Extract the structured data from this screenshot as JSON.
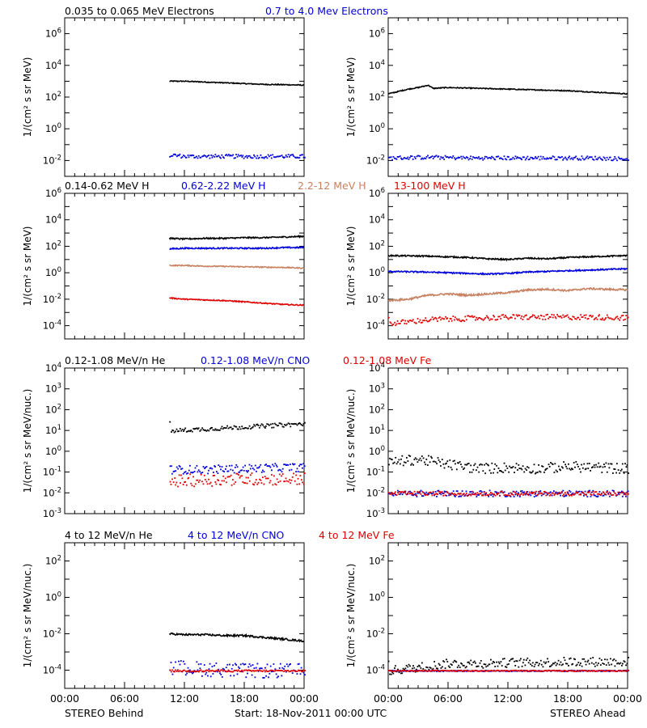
{
  "colors": {
    "black": "#000000",
    "blue": "#0000dd",
    "tan": "#c88060",
    "red": "#e00000"
  },
  "footer": {
    "x_ticks": [
      "00:00",
      "06:00",
      "12:00",
      "18:00",
      "00:00"
    ],
    "left_label": "STEREO Behind",
    "center_label": "Start: 18-Nov-2011 00:00 UTC",
    "right_label": "STEREO Ahead"
  },
  "rows": [
    {
      "legend": [
        {
          "text": "0.035 to 0.065 MeV Electrons",
          "color": "black"
        },
        {
          "text": "0.7 to 4.0 Mev Electrons",
          "color": "blue"
        }
      ]
    },
    {
      "legend": [
        {
          "text": "0.14-0.62 MeV H",
          "color": "black"
        },
        {
          "text": "0.62-2.22 MeV H",
          "color": "blue"
        },
        {
          "text": "2.2-12 MeV H",
          "color": "tan"
        },
        {
          "text": "13-100 MeV H",
          "color": "red"
        }
      ]
    },
    {
      "legend": [
        {
          "text": "0.12-1.08 MeV/n He",
          "color": "black"
        },
        {
          "text": "0.12-1.08 MeV/n CNO",
          "color": "blue"
        },
        {
          "text": "0.12-1.08 MeV Fe",
          "color": "red"
        }
      ]
    },
    {
      "legend": [
        {
          "text": "4 to 12 MeV/n He",
          "color": "black"
        },
        {
          "text": "4 to 12 MeV/n CNO",
          "color": "blue"
        },
        {
          "text": "4 to 12 MeV Fe",
          "color": "red"
        }
      ]
    }
  ],
  "chart_data": [
    {
      "type": "scatter",
      "panel": "electrons-behind",
      "ylabel": "1/(cm² s sr MeV)",
      "y_scale": "log",
      "ylim_exp": [
        -3,
        7
      ],
      "y_ticks": [
        "10^-2",
        "10^0",
        "10^2",
        "10^4",
        "10^6"
      ],
      "xlim_hours": [
        0,
        24
      ],
      "x_ticks": [
        "00:00",
        "06:00",
        "12:00",
        "18:00",
        "00:00"
      ],
      "series": [
        {
          "name": "0.035 to 0.065 MeV Electrons",
          "color": "black",
          "style": "line",
          "x": [
            10.5,
            12,
            14,
            16,
            18,
            20,
            22,
            24
          ],
          "log10_y": [
            3.0,
            3.0,
            2.95,
            2.9,
            2.85,
            2.8,
            2.78,
            2.75
          ],
          "scatter": 0.03
        },
        {
          "name": "0.7 to 4.0 Mev Electrons",
          "color": "blue",
          "style": "dots",
          "x": [
            10.5,
            12,
            14,
            16,
            18,
            20,
            22,
            24
          ],
          "log10_y": [
            -1.6,
            -1.7,
            -1.7,
            -1.7,
            -1.7,
            -1.7,
            -1.7,
            -1.7
          ],
          "scatter": 0.12
        }
      ]
    },
    {
      "type": "scatter",
      "panel": "electrons-ahead",
      "ylabel": "1/(cm² s sr MeV)",
      "y_scale": "log",
      "ylim_exp": [
        -3,
        7
      ],
      "y_ticks": [
        "10^-2",
        "10^0",
        "10^2",
        "10^4",
        "10^6"
      ],
      "xlim_hours": [
        0,
        24
      ],
      "x_ticks": [
        "00:00",
        "06:00",
        "12:00",
        "18:00",
        "00:00"
      ],
      "series": [
        {
          "name": "0.035 to 0.065 MeV Electrons",
          "color": "black",
          "style": "line",
          "x": [
            0,
            1,
            2,
            3,
            4,
            4.5,
            6,
            9,
            12,
            15,
            18,
            21,
            24
          ],
          "log10_y": [
            2.2,
            2.35,
            2.5,
            2.6,
            2.75,
            2.55,
            2.6,
            2.55,
            2.5,
            2.45,
            2.4,
            2.3,
            2.2
          ],
          "scatter": 0.03
        },
        {
          "name": "0.7 to 4.0 Mev Electrons",
          "color": "blue",
          "style": "dots",
          "x": [
            0,
            4,
            8,
            12,
            16,
            20,
            24
          ],
          "log10_y": [
            -1.8,
            -1.75,
            -1.8,
            -1.8,
            -1.8,
            -1.8,
            -1.85
          ],
          "scatter": 0.12
        }
      ]
    },
    {
      "type": "scatter",
      "panel": "protons-behind",
      "ylabel": "1/(cm² s sr MeV)",
      "y_scale": "log",
      "ylim_exp": [
        -5,
        6
      ],
      "y_ticks": [
        "10^-4",
        "10^-2",
        "10^0",
        "10^2",
        "10^4",
        "10^6"
      ],
      "xlim_hours": [
        0,
        24
      ],
      "x_ticks": [
        "00:00",
        "06:00",
        "12:00",
        "18:00",
        "00:00"
      ],
      "series": [
        {
          "name": "0.14-0.62 MeV H",
          "color": "black",
          "style": "line",
          "x": [
            10.5,
            12,
            14,
            16,
            18,
            20,
            22,
            24
          ],
          "log10_y": [
            2.6,
            2.55,
            2.6,
            2.6,
            2.65,
            2.65,
            2.7,
            2.75
          ],
          "scatter": 0.05
        },
        {
          "name": "0.62-2.22 MeV H",
          "color": "blue",
          "style": "line",
          "x": [
            10.5,
            12,
            14,
            16,
            18,
            20,
            22,
            24
          ],
          "log10_y": [
            1.8,
            1.85,
            1.85,
            1.85,
            1.85,
            1.85,
            1.9,
            1.9
          ],
          "scatter": 0.05
        },
        {
          "name": "2.2-12 MeV H",
          "color": "tan",
          "style": "line",
          "x": [
            10.5,
            12,
            14,
            16,
            18,
            20,
            22,
            24
          ],
          "log10_y": [
            0.55,
            0.55,
            0.5,
            0.48,
            0.45,
            0.42,
            0.4,
            0.35
          ],
          "scatter": 0.04
        },
        {
          "name": "13-100 MeV H",
          "color": "red",
          "style": "line",
          "x": [
            10.5,
            12,
            14,
            16,
            18,
            20,
            22,
            24
          ],
          "log10_y": [
            -1.9,
            -2.0,
            -2.05,
            -2.1,
            -2.2,
            -2.3,
            -2.4,
            -2.45
          ],
          "scatter": 0.04
        }
      ]
    },
    {
      "type": "scatter",
      "panel": "protons-ahead",
      "ylabel": "1/(cm² s sr MeV)",
      "y_scale": "log",
      "ylim_exp": [
        -5,
        6
      ],
      "y_ticks": [
        "10^-4",
        "10^-2",
        "10^0",
        "10^2",
        "10^4",
        "10^6"
      ],
      "xlim_hours": [
        0,
        24
      ],
      "x_ticks": [
        "00:00",
        "06:00",
        "12:00",
        "18:00",
        "00:00"
      ],
      "series": [
        {
          "name": "0.14-0.62 MeV H",
          "color": "black",
          "style": "line",
          "x": [
            0,
            4,
            8,
            10,
            12,
            14,
            16,
            18,
            20,
            22,
            24
          ],
          "log10_y": [
            1.3,
            1.25,
            1.15,
            1.05,
            1.0,
            1.1,
            1.05,
            1.15,
            1.2,
            1.25,
            1.3
          ],
          "scatter": 0.05
        },
        {
          "name": "0.62-2.22 MeV H",
          "color": "blue",
          "style": "line",
          "x": [
            0,
            4,
            8,
            10,
            12,
            14,
            16,
            18,
            20,
            22,
            24
          ],
          "log10_y": [
            0.1,
            0.05,
            -0.05,
            -0.1,
            -0.05,
            0.05,
            0.1,
            0.15,
            0.2,
            0.25,
            0.3
          ],
          "scatter": 0.05
        },
        {
          "name": "2.2-12 MeV H",
          "color": "tan",
          "style": "line",
          "x": [
            0,
            2,
            4,
            6,
            8,
            10,
            12,
            14,
            16,
            18,
            20,
            22,
            24
          ],
          "log10_y": [
            -2.1,
            -2.0,
            -1.7,
            -1.6,
            -1.7,
            -1.6,
            -1.5,
            -1.3,
            -1.25,
            -1.35,
            -1.2,
            -1.25,
            -1.3
          ],
          "scatter": 0.07
        },
        {
          "name": "13-100 MeV H",
          "color": "red",
          "style": "dots",
          "x": [
            0,
            4,
            8,
            12,
            16,
            20,
            24
          ],
          "log10_y": [
            -3.8,
            -3.5,
            -3.4,
            -3.3,
            -3.3,
            -3.3,
            -3.35
          ],
          "scatter": 0.2
        }
      ]
    },
    {
      "type": "scatter",
      "panel": "heavy-low-behind",
      "ylabel": "1/(cm² s sr MeV/nuc.)",
      "y_scale": "log",
      "ylim_exp": [
        -3,
        4
      ],
      "y_ticks": [
        "10^-3",
        "10^-2",
        "10^-1",
        "10^0",
        "10^1",
        "10^2",
        "10^3",
        "10^4"
      ],
      "xlim_hours": [
        0,
        24
      ],
      "x_ticks": [
        "00:00",
        "06:00",
        "12:00",
        "18:00",
        "00:00"
      ],
      "series": [
        {
          "name": "0.12-1.08 MeV/n He",
          "color": "black",
          "style": "dots",
          "x": [
            10.5,
            12,
            14,
            16,
            18,
            20,
            22,
            24
          ],
          "log10_y": [
            1.0,
            1.05,
            1.1,
            1.15,
            1.2,
            1.25,
            1.3,
            1.35
          ],
          "scatter": 0.1
        },
        {
          "name": "0.12-1.08 MeV/n CNO",
          "color": "blue",
          "style": "dots",
          "x": [
            10.5,
            14,
            18,
            22,
            24
          ],
          "log10_y": [
            -0.85,
            -0.85,
            -0.8,
            -0.75,
            -0.75
          ],
          "scatter": 0.2
        },
        {
          "name": "0.12-1.08 MeV Fe",
          "color": "red",
          "style": "dots",
          "x": [
            10.5,
            14,
            18,
            22,
            24
          ],
          "log10_y": [
            -1.4,
            -1.35,
            -1.3,
            -1.3,
            -1.3
          ],
          "scatter": 0.3
        }
      ]
    },
    {
      "type": "scatter",
      "panel": "heavy-low-ahead",
      "ylabel": "1/(cm² s sr MeV/nuc.)",
      "y_scale": "log",
      "ylim_exp": [
        -3,
        4
      ],
      "y_ticks": [
        "10^-3",
        "10^-2",
        "10^-1",
        "10^0",
        "10^1",
        "10^2",
        "10^3",
        "10^4"
      ],
      "xlim_hours": [
        0,
        24
      ],
      "x_ticks": [
        "00:00",
        "06:00",
        "12:00",
        "18:00",
        "00:00"
      ],
      "series": [
        {
          "name": "0.12-1.08 MeV/n He",
          "color": "black",
          "style": "dots",
          "x": [
            0,
            3,
            6,
            9,
            12,
            15,
            18,
            21,
            24
          ],
          "log10_y": [
            -0.5,
            -0.35,
            -0.6,
            -0.8,
            -0.75,
            -0.8,
            -0.7,
            -0.75,
            -0.8
          ],
          "scatter": 0.25
        },
        {
          "name": "0.12-1.08 MeV/n CNO",
          "color": "blue",
          "style": "dots",
          "x": [
            0,
            6,
            12,
            18,
            24
          ],
          "log10_y": [
            -2.0,
            -2.0,
            -2.0,
            -2.0,
            -2.0
          ],
          "scatter": 0.15
        },
        {
          "name": "0.12-1.08 MeV Fe",
          "color": "red",
          "style": "dots",
          "x": [
            0,
            6,
            12,
            18,
            24
          ],
          "log10_y": [
            -2.0,
            -2.0,
            -2.0,
            -2.0,
            -2.0
          ],
          "scatter": 0.1
        }
      ]
    },
    {
      "type": "scatter",
      "panel": "heavy-high-behind",
      "ylabel": "1/(cm² s sr MeV/nuc.)",
      "y_scale": "log",
      "ylim_exp": [
        -5,
        3
      ],
      "y_ticks": [
        "10^-4",
        "10^-2",
        "10^0",
        "10^2"
      ],
      "xlim_hours": [
        0,
        24
      ],
      "x_ticks": [
        "00:00",
        "06:00",
        "12:00",
        "18:00",
        "00:00"
      ],
      "series": [
        {
          "name": "4 to 12 MeV/n He",
          "color": "black",
          "style": "line",
          "x": [
            10.5,
            12,
            14,
            16,
            18,
            20,
            22,
            24
          ],
          "log10_y": [
            -2.0,
            -2.05,
            -2.05,
            -2.1,
            -2.1,
            -2.2,
            -2.3,
            -2.4
          ],
          "scatter": 0.05
        },
        {
          "name": "4 to 12 MeV/n CNO",
          "color": "blue",
          "style": "dots",
          "x": [
            10.5,
            14,
            18,
            22,
            24
          ],
          "log10_y": [
            -3.8,
            -3.9,
            -4.0,
            -4.0,
            -4.0
          ],
          "scatter": 0.4
        },
        {
          "name": "4 to 12 MeV Fe",
          "color": "red",
          "style": "dots",
          "x": [
            10.5,
            14,
            18,
            22,
            24
          ],
          "log10_y": [
            -4.0,
            -4.0,
            -4.0,
            -4.0,
            -4.0
          ],
          "scatter": 0.05
        }
      ]
    },
    {
      "type": "scatter",
      "panel": "heavy-high-ahead",
      "ylabel": "1/(cm² s sr MeV/nuc.)",
      "y_scale": "log",
      "ylim_exp": [
        -5,
        3
      ],
      "y_ticks": [
        "10^-4",
        "10^-2",
        "10^0",
        "10^2"
      ],
      "xlim_hours": [
        0,
        24
      ],
      "x_ticks": [
        "00:00",
        "06:00",
        "12:00",
        "18:00",
        "00:00"
      ],
      "series": [
        {
          "name": "4 to 12 MeV/n He",
          "color": "black",
          "style": "dots",
          "x": [
            0,
            3,
            6,
            9,
            12,
            15,
            18,
            21,
            24
          ],
          "log10_y": [
            -4.0,
            -3.8,
            -3.6,
            -3.6,
            -3.55,
            -3.55,
            -3.5,
            -3.5,
            -3.5
          ],
          "scatter": 0.25
        },
        {
          "name": "4 to 12 MeV/n CNO",
          "color": "blue",
          "style": "dots",
          "x": [
            0,
            6,
            12,
            18,
            24
          ],
          "log10_y": [
            -4.0,
            -4.0,
            -4.0,
            -4.0,
            -4.0
          ],
          "scatter": 0.03
        },
        {
          "name": "4 to 12 MeV Fe",
          "color": "red",
          "style": "dots",
          "x": [
            0,
            6,
            12,
            18,
            24
          ],
          "log10_y": [
            -4.0,
            -4.0,
            -4.0,
            -4.0,
            -4.0
          ],
          "scatter": 0.03
        }
      ]
    }
  ]
}
